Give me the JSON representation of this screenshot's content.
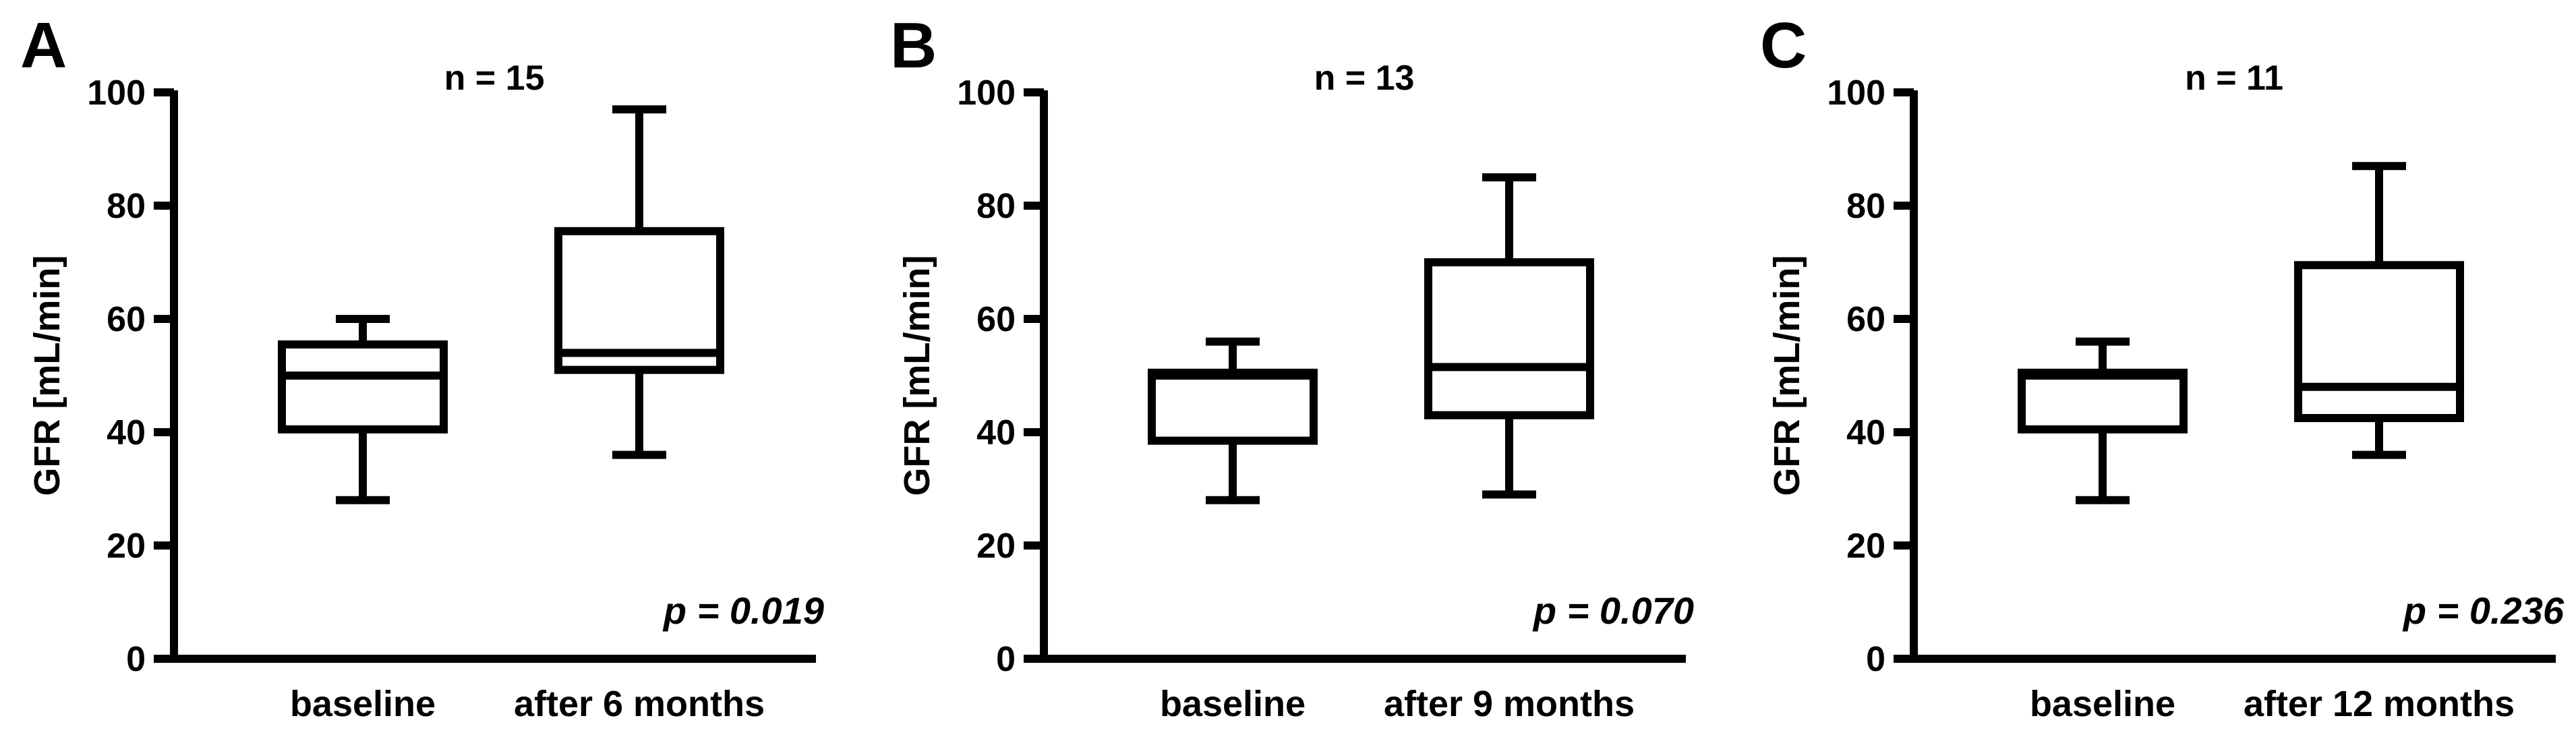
{
  "chart_data": [
    {
      "type": "boxplot",
      "panel_label": "A",
      "title": "n = 15",
      "ylabel": "GFR [mL/min]",
      "xlabel": "",
      "ylim": [
        0,
        100
      ],
      "yticks": [
        "0",
        "20",
        "40",
        "60",
        "80",
        "100"
      ],
      "categories": [
        "baseline",
        "after 6 months"
      ],
      "boxes": [
        {
          "min": 28,
          "q1": 40.5,
          "median": 50,
          "q3": 55.5,
          "max": 60
        },
        {
          "min": 36,
          "q1": 51,
          "median": 54,
          "q3": 75.5,
          "max": 97
        }
      ],
      "annotation": "p = 0.019"
    },
    {
      "type": "boxplot",
      "panel_label": "B",
      "title": "n = 13",
      "ylabel": "GFR [mL/min]",
      "xlabel": "",
      "ylim": [
        0,
        100
      ],
      "yticks": [
        "0",
        "20",
        "40",
        "60",
        "80",
        "100"
      ],
      "categories": [
        "baseline",
        "after 9 months"
      ],
      "boxes": [
        {
          "min": 28,
          "q1": 38.5,
          "median": 50,
          "q3": 50.5,
          "max": 56
        },
        {
          "min": 29,
          "q1": 43,
          "median": 51.5,
          "q3": 70,
          "max": 85
        }
      ],
      "annotation": "p = 0.070"
    },
    {
      "type": "boxplot",
      "panel_label": "C",
      "title": "n = 11",
      "ylabel": "GFR [mL/min]",
      "xlabel": "",
      "ylim": [
        0,
        100
      ],
      "yticks": [
        "0",
        "20",
        "40",
        "60",
        "80",
        "100"
      ],
      "categories": [
        "baseline",
        "after 12 months"
      ],
      "boxes": [
        {
          "min": 28,
          "q1": 40.5,
          "median": 50,
          "q3": 50.5,
          "max": 56
        },
        {
          "min": 36,
          "q1": 42.5,
          "median": 48,
          "q3": 69.5,
          "max": 87
        }
      ],
      "annotation": "p = 0.236"
    }
  ]
}
